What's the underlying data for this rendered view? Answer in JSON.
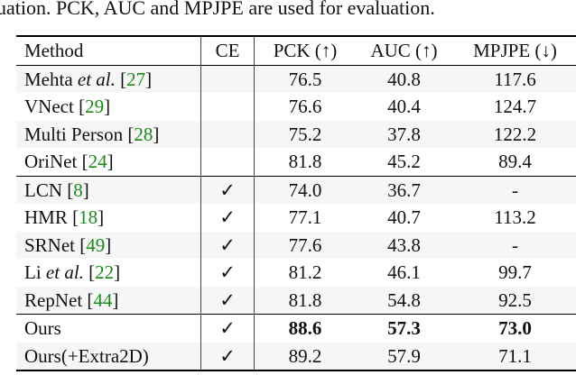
{
  "caption": "uation. PCK, AUC and MPJPE are used for evaluation.",
  "table": {
    "headers": [
      "Method",
      "CE",
      "PCK (↑)",
      "AUC (↑)",
      "MPJPE (↓)"
    ],
    "rows": [
      {
        "name": "Mehta",
        "italic": "et al.",
        "ref": "27",
        "ce": "",
        "pck": "76.5",
        "auc": "40.8",
        "mpjpe": "117.6"
      },
      {
        "name": "VNect",
        "italic": "",
        "ref": "29",
        "ce": "",
        "pck": "76.6",
        "auc": "40.4",
        "mpjpe": "124.7"
      },
      {
        "name": "Multi Person",
        "italic": "",
        "ref": "28",
        "ce": "",
        "pck": "75.2",
        "auc": "37.8",
        "mpjpe": "122.2"
      },
      {
        "name": "OriNet",
        "italic": "",
        "ref": "24",
        "ce": "",
        "pck": "81.8",
        "auc": "45.2",
        "mpjpe": "89.4"
      },
      {
        "name": "LCN",
        "italic": "",
        "ref": "8",
        "ce": "✓",
        "pck": "74.0",
        "auc": "36.7",
        "mpjpe": "-"
      },
      {
        "name": "HMR",
        "italic": "",
        "ref": "18",
        "ce": "✓",
        "pck": "77.1",
        "auc": "40.7",
        "mpjpe": "113.2"
      },
      {
        "name": "SRNet",
        "italic": "",
        "ref": "49",
        "ce": "✓",
        "pck": "77.6",
        "auc": "43.8",
        "mpjpe": "-"
      },
      {
        "name": "Li",
        "italic": "et al.",
        "ref": "22",
        "ce": "✓",
        "pck": "81.2",
        "auc": "46.1",
        "mpjpe": "99.7"
      },
      {
        "name": "RepNet",
        "italic": "",
        "ref": "44",
        "ce": "✓",
        "pck": "81.8",
        "auc": "54.8",
        "mpjpe": "92.5"
      },
      {
        "name": "Ours",
        "italic": "",
        "ref": "",
        "ce": "✓",
        "pck": "88.6",
        "auc": "57.3",
        "mpjpe": "73.0",
        "bold": true
      },
      {
        "name": "Ours(+Extra2D)",
        "italic": "",
        "ref": "",
        "ce": "✓",
        "pck": "89.2",
        "auc": "57.9",
        "mpjpe": "71.1"
      }
    ],
    "group_starts": [
      4,
      9
    ],
    "ref_color": "#1a8a1a"
  }
}
